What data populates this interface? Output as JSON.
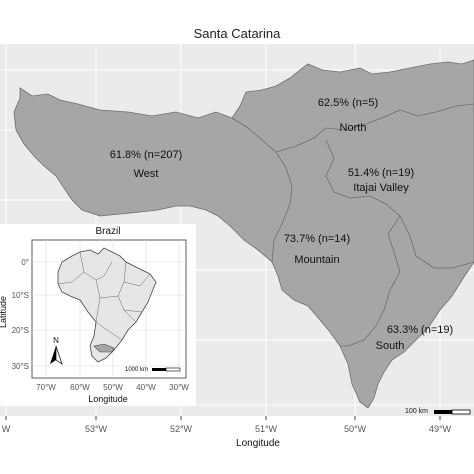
{
  "title": "Santa Catarina",
  "colors": {
    "panel_bg": "#ebebeb",
    "grid": "#ffffff",
    "region_fill": "#a6a6a6",
    "region_stroke": "#6e6e6e",
    "inset_country_fill": "#e6e6e6",
    "inset_state_fill": "#a6a6a6"
  },
  "regions": [
    {
      "name": "West",
      "stat": "61.8% (n=207)"
    },
    {
      "name": "North",
      "stat": "62.5% (n=5)"
    },
    {
      "name": "Itajai Valley",
      "stat": "51.4% (n=19)"
    },
    {
      "name": "Mountain",
      "stat": "73.7% (n=14)"
    },
    {
      "name": "South",
      "stat": "63.3% (n=19)"
    }
  ],
  "main_axes": {
    "x_ticks": [
      "W",
      "53°W",
      "52°W",
      "51°W",
      "50°W",
      "49°W"
    ],
    "x_label": "Longitude"
  },
  "main_scale_bar": "100 km",
  "inset": {
    "title": "Brazil",
    "x_ticks": [
      "70°W",
      "60°W",
      "50°W",
      "40°W",
      "30°W"
    ],
    "y_ticks": [
      "0°",
      "10°S",
      "20°S",
      "30°S"
    ],
    "x_label": "Longitude",
    "y_label": "Latitude",
    "north_label": "N",
    "scale_bar": "1000 km"
  }
}
